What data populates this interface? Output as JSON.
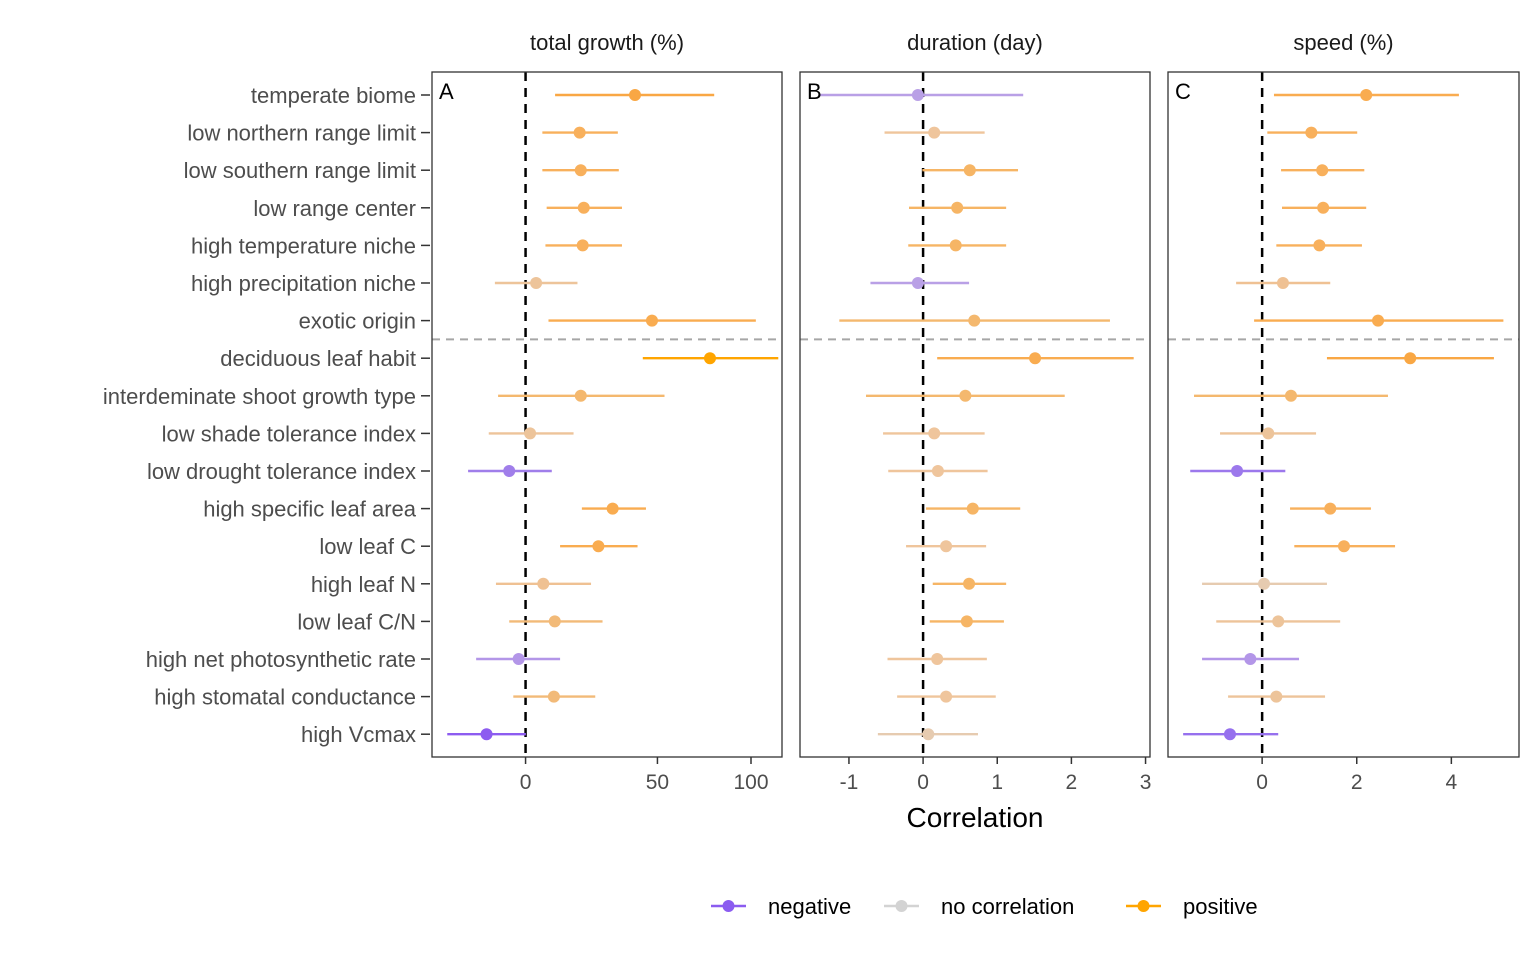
{
  "chart_data": {
    "type": "forest",
    "xlabel": "Correlation",
    "categories": [
      "temperate biome",
      "low northern range limit",
      "low southern range limit",
      "low range center",
      "high temperature niche",
      "high precipitation niche",
      "exotic origin",
      "deciduous leaf habit",
      "interdeminate shoot growth type",
      "low shade tolerance index",
      "low drought tolerance index",
      "high specific leaf area",
      "low leaf C",
      "high leaf N",
      "low leaf C/N",
      "high net photosynthetic rate",
      "high stomatal conductance",
      "high Vcmax"
    ],
    "group_separator_after": "exotic origin",
    "legend": {
      "position": "bottom",
      "entries": [
        {
          "label": "negative",
          "color": "#8B5CF0"
        },
        {
          "label": "no correlation",
          "color": "#D3D3D3"
        },
        {
          "label": "positive",
          "color": "#FFA500"
        }
      ]
    },
    "panels": [
      {
        "tag": "A",
        "title": "total growth (%)",
        "scale": "log1p-ratio",
        "xlim": [
          -25,
          120
        ],
        "ticks": [
          0,
          50,
          100
        ],
        "tick_labels": [
          "0",
          "50",
          "100"
        ],
        "estimate": [
          40,
          18.1,
          18.5,
          19.6,
          19.2,
          3.3,
          47.5,
          76.3,
          18.5,
          1.4,
          -4.9,
          30.7,
          25.1,
          5.6,
          9.4,
          -2.1,
          9.1,
          -11.3
        ],
        "lower": [
          9.5,
          5.3,
          5.3,
          6.7,
          6.3,
          -9,
          7.3,
          43.4,
          -8.1,
          -10.7,
          -16.2,
          18.9,
          11.2,
          -8.7,
          -4.9,
          -14.1,
          -3.7,
          -21.4
        ],
        "upper": [
          78.6,
          32.8,
          33.2,
          34.5,
          34.5,
          17.3,
          103,
          117.5,
          53.3,
          15.9,
          8.4,
          44.8,
          41.1,
          22.3,
          26.7,
          11.2,
          23.9,
          0.1
        ],
        "colors": [
          "#F9A744",
          "#F8B05C",
          "#F8B05C",
          "#F8B05C",
          "#F8B05C",
          "#EDC49A",
          "#F9AC50",
          "#FFA500",
          "#F4B86E",
          "#EDC49A",
          "#A07EEA",
          "#F9AC50",
          "#F9AC50",
          "#EFC193",
          "#F2BA78",
          "#B396E8",
          "#F2BA78",
          "#8D5CF0"
        ]
      },
      {
        "tag": "B",
        "title": "duration (day)",
        "scale": "linear",
        "xlim": [
          -1.66,
          3.06
        ],
        "ticks": [
          -1,
          0,
          1,
          2,
          3
        ],
        "tick_labels": [
          "-1",
          "0",
          "1",
          "2",
          "3"
        ],
        "estimate": [
          -0.07,
          0.15,
          0.63,
          0.46,
          0.44,
          -0.07,
          0.69,
          1.51,
          0.57,
          0.15,
          0.2,
          0.67,
          0.31,
          0.62,
          0.59,
          0.19,
          0.31,
          0.07
        ],
        "lower": [
          -1.4,
          -0.52,
          -0.01,
          -0.19,
          -0.2,
          -0.71,
          -1.13,
          0.19,
          -0.77,
          -0.54,
          -0.47,
          0.04,
          -0.23,
          0.13,
          0.09,
          -0.48,
          -0.35,
          -0.61
        ],
        "upper": [
          1.35,
          0.83,
          1.28,
          1.12,
          1.12,
          0.62,
          2.52,
          2.84,
          1.91,
          0.83,
          0.87,
          1.31,
          0.85,
          1.12,
          1.09,
          0.86,
          0.98,
          0.74
        ],
        "colors": [
          "#B9A0E6",
          "#EFC59C",
          "#F6B565",
          "#F6B565",
          "#F6B565",
          "#B9A0E6",
          "#F4B86E",
          "#F9AC50",
          "#F4B86E",
          "#EFC59C",
          "#EFC59C",
          "#F6B565",
          "#EFC59C",
          "#F6B565",
          "#F6B565",
          "#EFC59C",
          "#EFC59C",
          "#E6CBB0"
        ]
      },
      {
        "tag": "C",
        "title": "speed (%)",
        "scale": "linear",
        "xlim": [
          -1.99,
          5.43
        ],
        "ticks": [
          0,
          2,
          4
        ],
        "tick_labels": [
          "0",
          "2",
          "4"
        ],
        "estimate": [
          2.2,
          1.04,
          1.27,
          1.29,
          1.21,
          0.44,
          2.45,
          3.13,
          0.61,
          0.13,
          -0.53,
          1.44,
          1.73,
          0.04,
          0.34,
          -0.25,
          0.3,
          -0.68
        ],
        "lower": [
          0.25,
          0.11,
          0.4,
          0.42,
          0.3,
          -0.55,
          -0.17,
          1.37,
          -1.44,
          -0.89,
          -1.52,
          0.59,
          0.68,
          -1.27,
          -0.97,
          -1.27,
          -0.72,
          -1.67
        ],
        "upper": [
          4.16,
          2.01,
          2.16,
          2.2,
          2.11,
          1.44,
          5.1,
          4.9,
          2.66,
          1.14,
          0.49,
          2.3,
          2.81,
          1.37,
          1.65,
          0.78,
          1.33,
          0.34
        ],
        "colors": [
          "#F9AC50",
          "#F8B05C",
          "#F8B05C",
          "#F8B05C",
          "#F8B05C",
          "#EFC193",
          "#F9AC50",
          "#F9A744",
          "#F4B86E",
          "#EDC49A",
          "#9C78EC",
          "#F8B05C",
          "#F8B05C",
          "#E6CBB0",
          "#EDC49A",
          "#B396E8",
          "#EDC49A",
          "#9670EE"
        ]
      }
    ]
  }
}
